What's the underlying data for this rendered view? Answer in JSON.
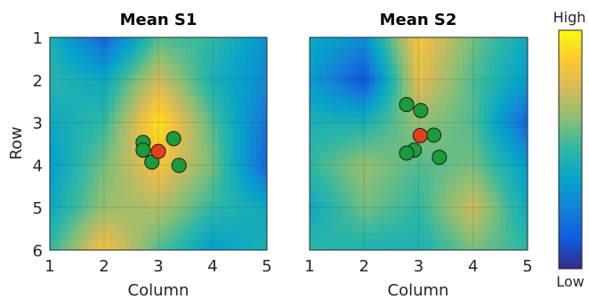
{
  "chart_data": [
    {
      "type": "heatmap",
      "title": "Mean S1",
      "xlabel": "Column",
      "ylabel": "Row",
      "xlim": [
        1,
        5
      ],
      "ylim": [
        1,
        6
      ],
      "x_ticks": [
        "1",
        "2",
        "3",
        "4",
        "5"
      ],
      "y_ticks": [
        "1",
        "2",
        "3",
        "4",
        "5",
        "6"
      ],
      "grid": true,
      "grid_values": [
        [
          0.45,
          0.15,
          0.55,
          0.5,
          0.3
        ],
        [
          0.48,
          0.4,
          0.75,
          0.45,
          0.28
        ],
        [
          0.4,
          0.5,
          0.95,
          0.55,
          0.2
        ],
        [
          0.35,
          0.6,
          0.85,
          0.6,
          0.15
        ],
        [
          0.4,
          0.65,
          0.7,
          0.5,
          0.4
        ],
        [
          0.5,
          0.85,
          0.55,
          0.35,
          0.45
        ]
      ],
      "points": [
        {
          "x": 2.72,
          "y": 3.47,
          "color": "#1a9c3a"
        },
        {
          "x": 2.72,
          "y": 3.65,
          "color": "#1a9c3a"
        },
        {
          "x": 2.88,
          "y": 3.93,
          "color": "#1a9c3a"
        },
        {
          "x": 3.28,
          "y": 3.38,
          "color": "#1a9c3a"
        },
        {
          "x": 3.38,
          "y": 4.01,
          "color": "#1a9c3a"
        },
        {
          "x": 3.0,
          "y": 3.68,
          "color": "#e0401c"
        }
      ]
    },
    {
      "type": "heatmap",
      "title": "Mean S2",
      "xlabel": "Column",
      "ylabel": "",
      "xlim": [
        1,
        5
      ],
      "ylim": [
        1,
        6
      ],
      "x_ticks": [
        "1",
        "2",
        "3",
        "4",
        "5"
      ],
      "y_ticks": [],
      "grid": true,
      "grid_values": [
        [
          0.4,
          0.3,
          0.85,
          0.6,
          0.4
        ],
        [
          0.35,
          0.1,
          0.8,
          0.55,
          0.35
        ],
        [
          0.45,
          0.45,
          0.65,
          0.55,
          0.15
        ],
        [
          0.5,
          0.65,
          0.55,
          0.6,
          0.35
        ],
        [
          0.4,
          0.6,
          0.5,
          0.75,
          0.4
        ],
        [
          0.5,
          0.45,
          0.45,
          0.6,
          0.5
        ]
      ],
      "points": [
        {
          "x": 2.78,
          "y": 2.58,
          "color": "#1a9c3a"
        },
        {
          "x": 3.04,
          "y": 2.72,
          "color": "#1a9c3a"
        },
        {
          "x": 3.28,
          "y": 3.3,
          "color": "#1a9c3a"
        },
        {
          "x": 2.92,
          "y": 3.65,
          "color": "#1a9c3a"
        },
        {
          "x": 2.78,
          "y": 3.72,
          "color": "#1a9c3a"
        },
        {
          "x": 3.38,
          "y": 3.82,
          "color": "#1a9c3a"
        },
        {
          "x": 3.03,
          "y": 3.31,
          "color": "#e0401c"
        }
      ]
    }
  ],
  "colorbar": {
    "high_label": "High",
    "low_label": "Low",
    "colormap": "parula",
    "colors": [
      "#352a87",
      "#0f5cdd",
      "#1481d6",
      "#06a4ca",
      "#2eb7a4",
      "#87bf77",
      "#d1bb59",
      "#fec832",
      "#f9fb0e"
    ]
  }
}
